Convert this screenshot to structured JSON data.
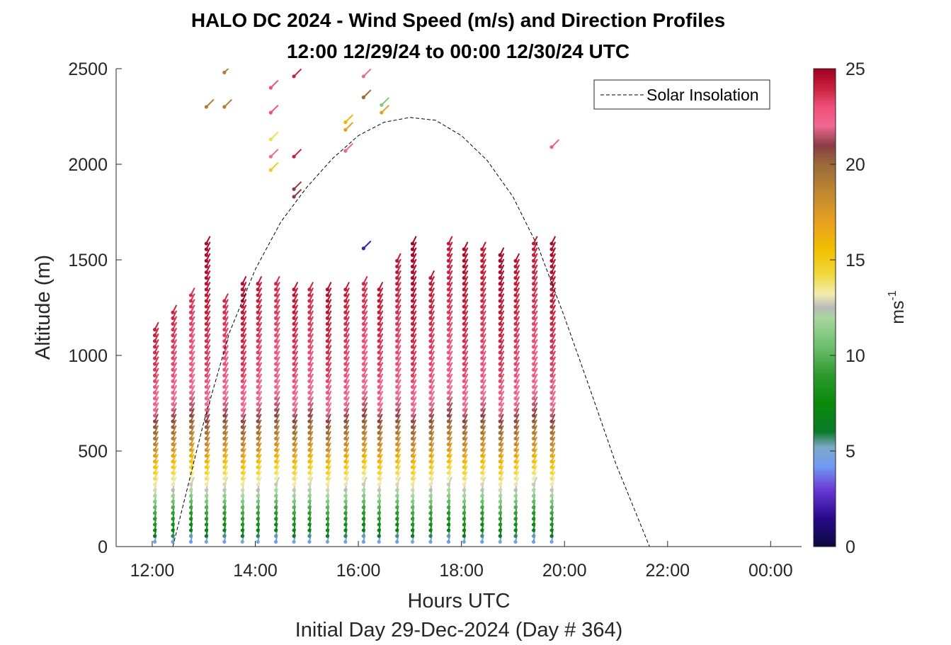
{
  "chart_data": {
    "type": "wind-barb-profile",
    "title": "HALO DC 2024 - Wind Speed (m/s) and Direction Profiles",
    "subtitle": "12:00 12/29/24 to 00:00 12/30/24  UTC",
    "xlabel": "Hours UTC",
    "ylabel": "Altitude (m)",
    "footer": "Initial Day 29-Dec-2024 (Day # 364)",
    "xlim_hours": [
      11.3,
      24.6
    ],
    "x_ticks": [
      "12:00",
      "14:00",
      "16:00",
      "18:00",
      "20:00",
      "22:00",
      "00:00"
    ],
    "x_tick_hours": [
      12,
      14,
      16,
      18,
      20,
      22,
      24
    ],
    "ylim": [
      0,
      2500
    ],
    "y_ticks": [
      "0",
      "500",
      "1000",
      "1500",
      "2000",
      "2500"
    ],
    "y_tick_values": [
      0,
      500,
      1000,
      1500,
      2000,
      2500
    ],
    "colorbar": {
      "label": "ms-1",
      "label_base": "ms",
      "label_exp": "-1",
      "range": [
        0,
        25
      ],
      "ticks": [
        "0",
        "5",
        "10",
        "15",
        "20",
        "25"
      ],
      "tick_values": [
        0,
        5,
        10,
        15,
        20,
        25
      ]
    },
    "legend": {
      "entries": [
        "Solar Insolation"
      ],
      "location": "top-right"
    },
    "solar_insolation": {
      "line_style": "dashed",
      "hours": [
        11.3,
        12.4,
        13.0,
        13.5,
        14.0,
        14.5,
        15.0,
        15.5,
        16.0,
        16.5,
        17.0,
        17.5,
        18.0,
        18.5,
        19.0,
        19.5,
        20.0,
        20.5,
        21.0,
        21.65,
        22.0,
        24.6
      ],
      "altitude": [
        0,
        0,
        650,
        1120,
        1450,
        1700,
        1880,
        2030,
        2150,
        2220,
        2245,
        2230,
        2150,
        2020,
        1830,
        1560,
        1200,
        820,
        430,
        0,
        0,
        0
      ]
    },
    "profile_hours": [
      12.05,
      12.4,
      12.75,
      13.05,
      13.4,
      13.75,
      14.05,
      14.4,
      14.75,
      15.05,
      15.4,
      15.75,
      16.1,
      16.4,
      16.75,
      17.05,
      17.4,
      17.75,
      18.05,
      18.4,
      18.75,
      19.05,
      19.4,
      19.75
    ],
    "profile_top_altitude": [
      1160,
      1250,
      1320,
      1590,
      1300,
      1380,
      1380,
      1390,
      1370,
      1370,
      1360,
      1360,
      1400,
      1360,
      1500,
      1600,
      1410,
      1600,
      1580,
      1560,
      1550,
      1520,
      1590,
      1600
    ],
    "wind_speed_profile": {
      "altitude": [
        0,
        100,
        200,
        300,
        400,
        500,
        700,
        900,
        1100,
        1300,
        1600
      ],
      "speed": [
        4,
        8,
        10,
        13,
        15,
        18,
        22,
        23.5,
        24,
        24.5,
        25
      ]
    },
    "upper_barbs": {
      "description_free": true,
      "points": [
        {
          "h": 13.05,
          "alt": 2300,
          "speed": 19
        },
        {
          "h": 13.4,
          "alt": 2480,
          "speed": 19
        },
        {
          "h": 13.4,
          "alt": 2300,
          "speed": 19
        },
        {
          "h": 14.3,
          "alt": 2400,
          "speed": 23
        },
        {
          "h": 14.3,
          "alt": 2270,
          "speed": 23
        },
        {
          "h": 14.3,
          "alt": 2130,
          "speed": 14
        },
        {
          "h": 14.3,
          "alt": 2040,
          "speed": 22
        },
        {
          "h": 14.3,
          "alt": 1970,
          "speed": 15
        },
        {
          "h": 14.75,
          "alt": 2460,
          "speed": 24
        },
        {
          "h": 14.75,
          "alt": 2040,
          "speed": 24
        },
        {
          "h": 14.75,
          "alt": 1870,
          "speed": 21
        },
        {
          "h": 14.75,
          "alt": 1830,
          "speed": 21
        },
        {
          "h": 15.75,
          "alt": 2220,
          "speed": 16
        },
        {
          "h": 15.75,
          "alt": 2180,
          "speed": 17
        },
        {
          "h": 15.75,
          "alt": 2070,
          "speed": 22
        },
        {
          "h": 16.1,
          "alt": 2460,
          "speed": 22
        },
        {
          "h": 16.1,
          "alt": 2350,
          "speed": 20
        },
        {
          "h": 16.1,
          "alt": 1560,
          "speed": 2
        },
        {
          "h": 16.45,
          "alt": 2310,
          "speed": 11
        },
        {
          "h": 16.45,
          "alt": 2270,
          "speed": 17
        },
        {
          "h": 19.75,
          "alt": 2090,
          "speed": 22.5
        }
      ]
    }
  }
}
